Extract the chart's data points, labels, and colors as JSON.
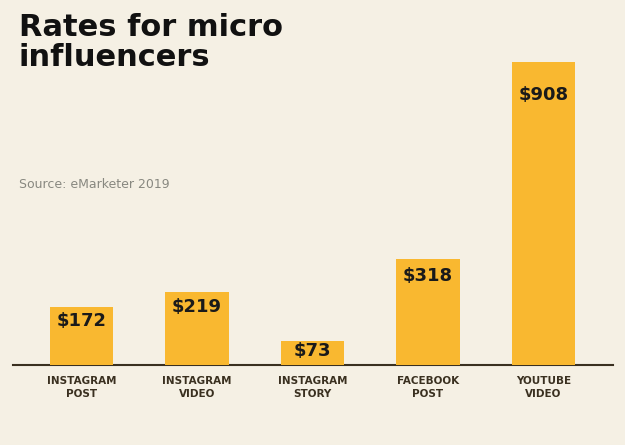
{
  "title": "Rates for micro\ninfluencers",
  "source": "Source: eMarketer 2019",
  "categories": [
    "INSTAGRAM\nPOST",
    "INSTAGRAM\nVIDEO",
    "INSTAGRAM\nSTORY",
    "FACEBOOK\nPOST",
    "YOUTUBE\nVIDEO"
  ],
  "values": [
    172,
    219,
    73,
    318,
    908
  ],
  "labels": [
    "$172",
    "$219",
    "$73",
    "$318",
    "$908"
  ],
  "bar_color": "#F9B830",
  "background_color": "#F5F0E4",
  "title_fontsize": 22,
  "source_fontsize": 9,
  "label_fontsize": 13,
  "tick_fontsize": 7.5,
  "ylim": [
    0,
    1000
  ]
}
